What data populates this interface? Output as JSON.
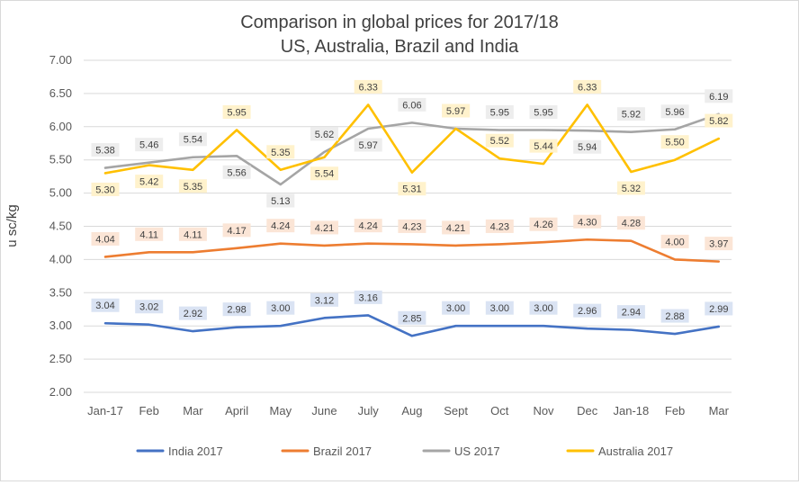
{
  "chart_data": {
    "type": "line",
    "title": "Comparison in global prices for 2017/18",
    "subtitle": "US, Australia, Brazil and India",
    "xlabel": "",
    "ylabel": "u sc/kg",
    "ylim": [
      2.0,
      7.0
    ],
    "ytick_labels": [
      "2.00",
      "2.50",
      "3.00",
      "3.50",
      "4.00",
      "4.50",
      "5.00",
      "5.50",
      "6.00",
      "6.50",
      "7.00"
    ],
    "grid": true,
    "legend_position": "bottom",
    "categories": [
      "Jan-17",
      "Feb",
      "Mar",
      "April",
      "May",
      "June",
      "July",
      "Aug",
      "Sept",
      "Oct",
      "Nov",
      "Dec",
      "Jan-18",
      "Feb",
      "Mar"
    ],
    "series": [
      {
        "name": "India 2017",
        "color": "#4472c4",
        "label_bg": "#dae3f3",
        "values": [
          3.04,
          3.02,
          2.92,
          2.98,
          3.0,
          3.12,
          3.16,
          2.85,
          3.0,
          3.0,
          3.0,
          2.96,
          2.94,
          2.88,
          2.99
        ],
        "label_pos": [
          "above",
          "above",
          "above",
          "above",
          "above",
          "above",
          "above",
          "above",
          "above",
          "above",
          "above",
          "above",
          "above",
          "above",
          "above"
        ]
      },
      {
        "name": "Brazil 2017",
        "color": "#ed7d31",
        "label_bg": "#fbe5d6",
        "values": [
          4.04,
          4.11,
          4.11,
          4.17,
          4.24,
          4.21,
          4.24,
          4.23,
          4.21,
          4.23,
          4.26,
          4.3,
          4.28,
          4.0,
          3.97
        ],
        "label_pos": [
          "above",
          "above",
          "above",
          "above",
          "above",
          "above",
          "above",
          "above",
          "above",
          "above",
          "above",
          "above",
          "above",
          "above",
          "above"
        ]
      },
      {
        "name": "US 2017",
        "color": "#a5a5a5",
        "label_bg": "#ededed",
        "values": [
          5.38,
          5.46,
          5.54,
          5.56,
          5.13,
          5.62,
          5.97,
          6.06,
          5.97,
          5.95,
          5.95,
          5.94,
          5.92,
          5.96,
          6.19
        ],
        "label_pos": [
          "above",
          "above",
          "above",
          "below",
          "below",
          "above",
          "below",
          "above",
          "above",
          "above",
          "above",
          "below",
          "above",
          "above",
          "above"
        ]
      },
      {
        "name": "Australia 2017",
        "color": "#ffc000",
        "label_bg": "#fff2cc",
        "values": [
          5.3,
          5.42,
          5.35,
          5.95,
          5.35,
          5.54,
          6.33,
          5.31,
          5.97,
          5.52,
          5.44,
          6.33,
          5.32,
          5.5,
          5.82
        ],
        "label_pos": [
          "below",
          "below",
          "below",
          "above",
          "above",
          "below",
          "above",
          "below",
          "above",
          "above",
          "above",
          "above",
          "below",
          "above",
          "above"
        ]
      }
    ]
  }
}
